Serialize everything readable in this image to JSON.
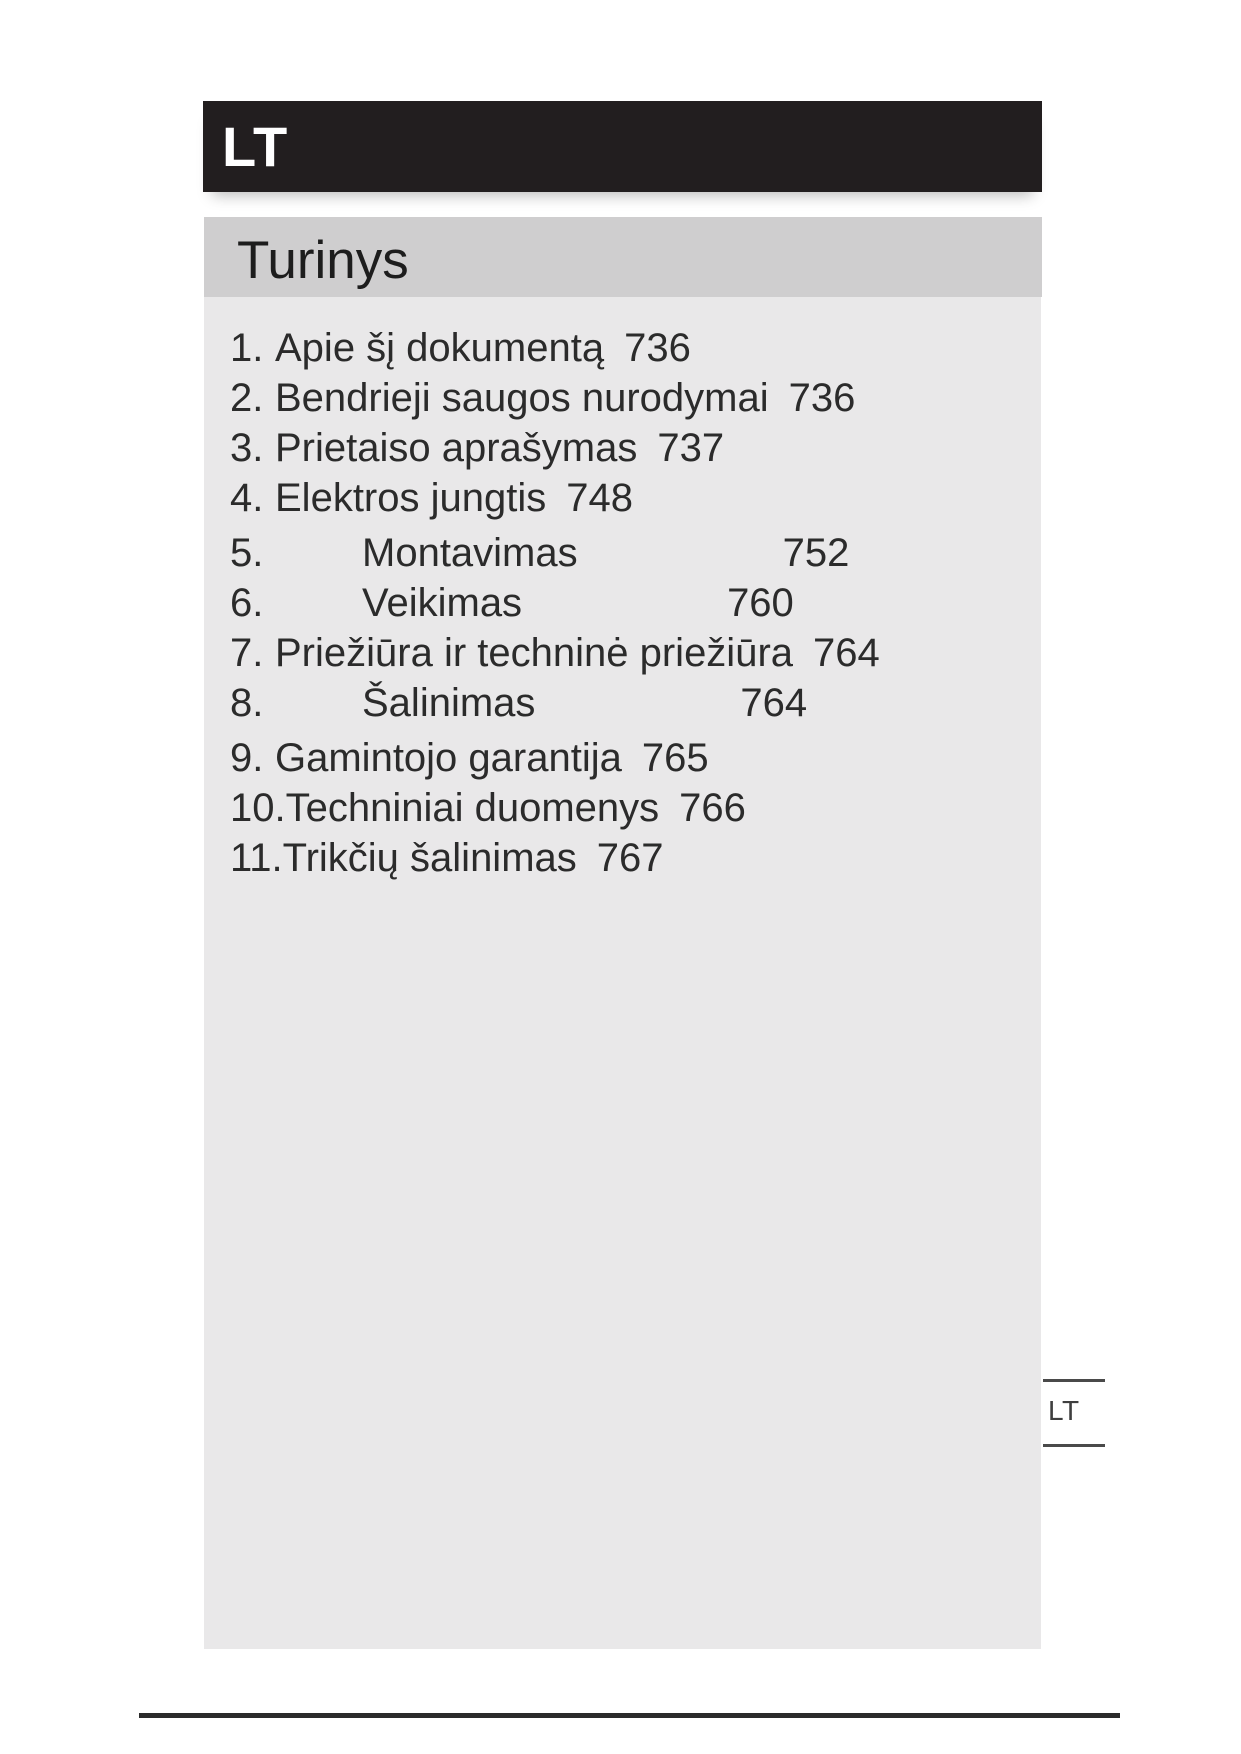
{
  "page": {
    "language_badge": "LT",
    "title": "Turinys",
    "side_tab_label": "LT"
  },
  "colors": {
    "language_bar_bg": "#221e1f",
    "header_band_bg": "#cfcecf",
    "content_bg": "#e9e8e9",
    "text": "#2b2b2b"
  },
  "toc": {
    "items": [
      {
        "num": "1.",
        "title": "Apie šį dokumentą",
        "page": "736"
      },
      {
        "num": "2.",
        "title": "Bendrieji saugos nurodymai",
        "page": "736"
      },
      {
        "num": "3.",
        "title": "Prietaiso aprašymas",
        "page": "737"
      },
      {
        "num": "4.",
        "title": "Elektros jungtis",
        "page": "748"
      },
      {
        "num": "5.",
        "title": "Montavimas",
        "page": "752"
      },
      {
        "num": "6.",
        "title": "Veikimas",
        "page": "760"
      },
      {
        "num": "7.",
        "title": "Priežiūra ir techninė priežiūra",
        "page": "764"
      },
      {
        "num": "8.",
        "title": "Šalinimas",
        "page": "764"
      },
      {
        "num": "9.",
        "title": "Gamintojo garantija",
        "page": "765"
      },
      {
        "num": "10.",
        "title": "Techniniai duomenys",
        "page": "766"
      },
      {
        "num": "11.",
        "title": "Trikčių šalinimas",
        "page": "767"
      }
    ]
  }
}
